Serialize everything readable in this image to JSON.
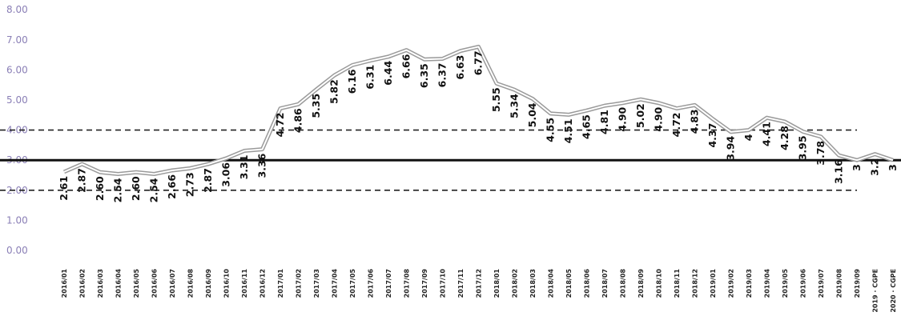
{
  "chart_data": {
    "type": "line",
    "title": "",
    "xlabel": "",
    "ylabel": "",
    "ylim": [
      0,
      8
    ],
    "grid": false,
    "legend": "none",
    "y_ticks": [
      "0.00",
      "1.00",
      "2.00",
      "3.00",
      "4.00",
      "5.00",
      "6.00",
      "7.00",
      "8.00"
    ],
    "categories": [
      "2016/01",
      "2016/02",
      "2016/03",
      "2016/04",
      "2016/05",
      "2016/06",
      "2016/07",
      "2016/08",
      "2016/09",
      "2016/10",
      "2016/11",
      "2016/12",
      "2017/01",
      "2017/02",
      "2017/03",
      "2017/04",
      "2017/05",
      "2017/06",
      "2017/07",
      "2017/08",
      "2017/09",
      "2017/10",
      "2017/11",
      "2017/12",
      "2018/01",
      "2018/02",
      "2018/03",
      "2018/04",
      "2018/05",
      "2018/06",
      "2018/07",
      "2018/08",
      "2018/09",
      "2018/10",
      "2018/11",
      "2018/12",
      "2019/01",
      "2019/02",
      "2019/03",
      "2019/04",
      "2019/05",
      "2019/06",
      "2019/07",
      "2019/08",
      "2019/09",
      "2019 · CGPE",
      "2020 · CGPE"
    ],
    "series": [
      {
        "values": [
          2.61,
          2.87,
          2.6,
          2.54,
          2.6,
          2.54,
          2.66,
          2.73,
          2.87,
          3.06,
          3.31,
          3.36,
          4.72,
          4.86,
          5.35,
          5.82,
          6.16,
          6.31,
          6.44,
          6.66,
          6.35,
          6.37,
          6.63,
          6.77,
          5.55,
          5.34,
          5.04,
          4.55,
          4.51,
          4.65,
          4.81,
          4.9,
          5.02,
          4.9,
          4.72,
          4.83,
          4.37,
          3.94,
          4,
          4.41,
          4.28,
          3.95,
          3.78,
          3.16,
          3,
          3.2,
          3
        ],
        "labels": [
          "2.61",
          "2.87",
          "2.60",
          "2.54",
          "2.60",
          "2.54",
          "2.66",
          "2.73",
          "2.87",
          "3.06",
          "3.31",
          "3.36",
          "4.72",
          "4.86",
          "5.35",
          "5.82",
          "6.16",
          "6.31",
          "6.44",
          "6.66",
          "6.35",
          "6.37",
          "6.63",
          "6.77",
          "5.55",
          "5.34",
          "5.04",
          "4.55",
          "4.51",
          "4.65",
          "4.81",
          "4.90",
          "5.02",
          "4.90",
          "4.72",
          "4.83",
          "4.37",
          "3.94",
          "4",
          "4.41",
          "4.28",
          "3.95",
          "3.78",
          "3.16",
          "3",
          "3.2",
          "3"
        ]
      }
    ],
    "reference_lines": [
      {
        "value": 3,
        "style": "solid"
      },
      {
        "value": 4,
        "style": "dashed"
      },
      {
        "value": 2,
        "style": "dashed"
      }
    ]
  }
}
